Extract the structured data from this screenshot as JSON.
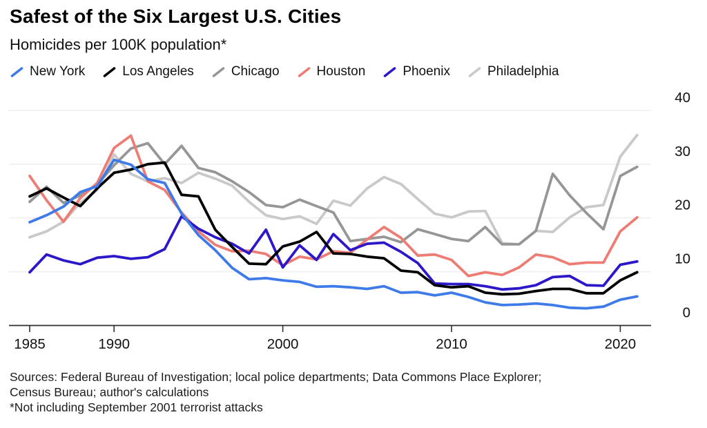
{
  "header": {
    "title": "Safest of the Six Largest U.S. Cities",
    "subtitle": "Homicides per 100K population*"
  },
  "footer": {
    "line1": "Sources: Federal Bureau of Investigation; local police departments; Data Commons Place Explorer;",
    "line2": "Census Bureau; author's calculations",
    "line3": "*Not including September 2001 terrorist attacks"
  },
  "chart_data": {
    "type": "line",
    "title": "Safest of the Six Largest U.S. Cities",
    "subtitle": "Homicides per 100K population*",
    "xlabel": "",
    "ylabel": "Homicides per 100K population",
    "ylim": [
      0,
      40
    ],
    "xlim": [
      1985,
      2021
    ],
    "grid": "horizontal",
    "legend_position": "top",
    "y_ticks": [
      0,
      10,
      20,
      30,
      40
    ],
    "x_ticks": [
      1985,
      1990,
      2000,
      2010,
      2020
    ],
    "x": [
      1985,
      1986,
      1987,
      1988,
      1989,
      1990,
      1991,
      1992,
      1993,
      1994,
      1995,
      1996,
      1997,
      1998,
      1999,
      2000,
      2001,
      2002,
      2003,
      2004,
      2005,
      2006,
      2007,
      2008,
      2009,
      2010,
      2011,
      2012,
      2013,
      2014,
      2015,
      2016,
      2017,
      2018,
      2019,
      2020,
      2021
    ],
    "series": [
      {
        "name": "New York",
        "color": "#3E7BE8",
        "values": [
          19.2,
          20.5,
          22.1,
          24.8,
          25.9,
          30.8,
          29.9,
          27.2,
          26.5,
          20.8,
          16.8,
          14.0,
          10.7,
          8.6,
          8.8,
          8.4,
          8.1,
          7.2,
          7.3,
          7.1,
          6.8,
          7.3,
          6.1,
          6.2,
          5.6,
          6.1,
          5.3,
          4.3,
          3.8,
          3.9,
          4.1,
          3.8,
          3.3,
          3.2,
          3.5,
          4.8,
          5.4
        ]
      },
      {
        "name": "Los Angeles",
        "color": "#000000",
        "values": [
          24.0,
          25.5,
          23.8,
          22.2,
          25.5,
          28.4,
          29.0,
          30.0,
          30.3,
          24.3,
          24.0,
          17.8,
          14.6,
          11.5,
          11.4,
          14.7,
          15.6,
          17.4,
          13.4,
          13.3,
          12.8,
          12.5,
          10.2,
          9.9,
          7.5,
          7.1,
          7.3,
          6.1,
          5.8,
          5.9,
          6.4,
          6.8,
          6.8,
          6.0,
          6.0,
          8.4,
          9.9
        ]
      },
      {
        "name": "Chicago",
        "color": "#969696",
        "values": [
          23.0,
          25.8,
          22.8,
          24.2,
          26.2,
          29.8,
          32.9,
          33.9,
          30.0,
          33.4,
          29.3,
          28.5,
          26.8,
          24.8,
          22.4,
          22.0,
          23.4,
          22.2,
          21.0,
          15.7,
          16.1,
          16.5,
          15.5,
          17.9,
          17.0,
          16.1,
          15.7,
          18.3,
          15.1,
          15.1,
          17.6,
          28.2,
          24.2,
          20.9,
          17.9,
          27.8,
          29.5
        ]
      },
      {
        "name": "Houston",
        "color": "#EC7C74",
        "values": [
          27.8,
          23.3,
          19.3,
          23.7,
          26.5,
          33.0,
          35.3,
          26.8,
          25.2,
          21.0,
          17.5,
          15.0,
          13.8,
          13.9,
          13.3,
          11.2,
          12.8,
          12.3,
          13.8,
          13.5,
          16.0,
          18.3,
          16.3,
          13.0,
          13.2,
          12.2,
          9.2,
          9.9,
          9.4,
          10.8,
          13.2,
          12.7,
          11.4,
          11.7,
          11.7,
          17.5,
          20.1
        ]
      },
      {
        "name": "Phoenix",
        "color": "#2C18C8",
        "values": [
          9.9,
          13.2,
          12.1,
          11.4,
          12.6,
          12.9,
          12.4,
          12.7,
          14.2,
          20.3,
          18.0,
          16.4,
          15.2,
          13.4,
          17.8,
          10.8,
          14.9,
          12.2,
          17.0,
          14.0,
          15.2,
          15.4,
          13.7,
          11.6,
          7.8,
          7.7,
          7.7,
          7.3,
          6.7,
          6.9,
          7.5,
          9.0,
          9.2,
          7.5,
          7.4,
          11.3,
          11.9
        ]
      },
      {
        "name": "Philadelphia",
        "color": "#C9C9C9",
        "values": [
          16.4,
          17.5,
          19.3,
          22.8,
          25.2,
          31.8,
          28.2,
          26.8,
          27.4,
          26.5,
          28.4,
          27.3,
          26.0,
          23.0,
          20.5,
          19.8,
          20.3,
          18.9,
          23.2,
          22.3,
          25.5,
          27.6,
          26.3,
          23.5,
          20.8,
          20.1,
          21.2,
          21.3,
          15.3,
          15.1,
          17.6,
          17.4,
          20.1,
          22.0,
          22.4,
          31.4,
          35.4
        ]
      }
    ]
  }
}
